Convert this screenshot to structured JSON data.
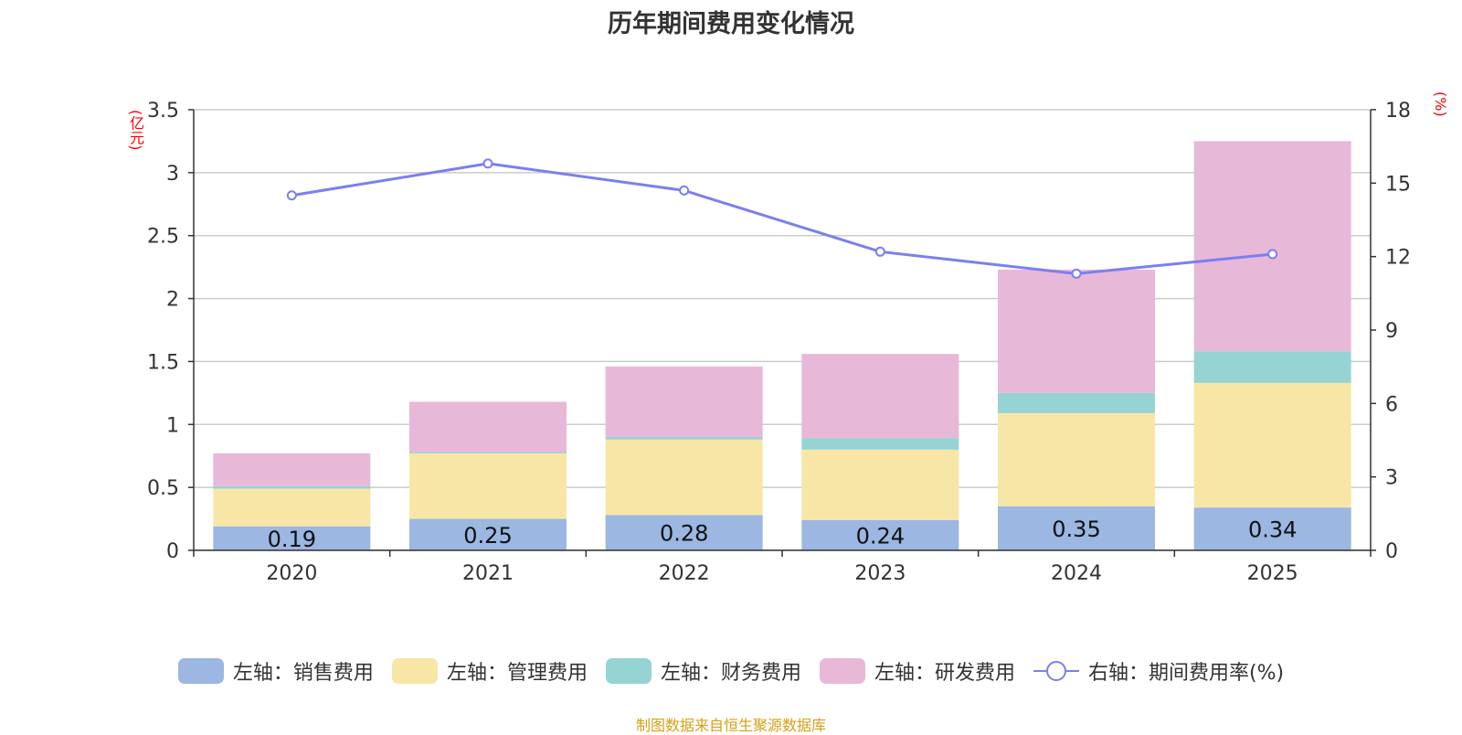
{
  "chart_data": {
    "type": "bar",
    "title": "历年期间费用变化情况",
    "left_unit": "(亿元)",
    "right_unit": "(%)",
    "categories": [
      "2020",
      "2021",
      "2022",
      "2023",
      "2024",
      "2025"
    ],
    "left_axis": {
      "min": 0,
      "max": 3.5,
      "ticks": [
        "0",
        "0.5",
        "1",
        "1.5",
        "2",
        "2.5",
        "3",
        "3.5"
      ]
    },
    "right_axis": {
      "min": 0,
      "max": 18,
      "ticks": [
        "0",
        "3",
        "6",
        "9",
        "12",
        "15",
        "18"
      ]
    },
    "stacked": true,
    "series": [
      {
        "name": "左轴：销售费用",
        "color": "#9bb7e2",
        "values": [
          0.19,
          0.25,
          0.28,
          0.24,
          0.35,
          0.34
        ],
        "labels": [
          "0.19",
          "0.25",
          "0.28",
          "0.24",
          "0.35",
          "0.34"
        ]
      },
      {
        "name": "左轴：管理费用",
        "color": "#f7e6a6",
        "values": [
          0.3,
          0.52,
          0.6,
          0.56,
          0.74,
          0.99
        ]
      },
      {
        "name": "左轴：财务费用",
        "color": "#96d4d4",
        "values": [
          0.02,
          0.01,
          0.02,
          0.09,
          0.16,
          0.25
        ]
      },
      {
        "name": "左轴：研发费用",
        "color": "#e8b8d8",
        "values": [
          0.26,
          0.4,
          0.56,
          0.67,
          0.98,
          1.67
        ]
      }
    ],
    "line": {
      "name": "右轴：期间费用率(%)",
      "color": "#7b7fef",
      "values": [
        14.5,
        15.8,
        14.7,
        12.2,
        11.3,
        12.1
      ]
    },
    "source": "制图数据来自恒生聚源数据库"
  }
}
